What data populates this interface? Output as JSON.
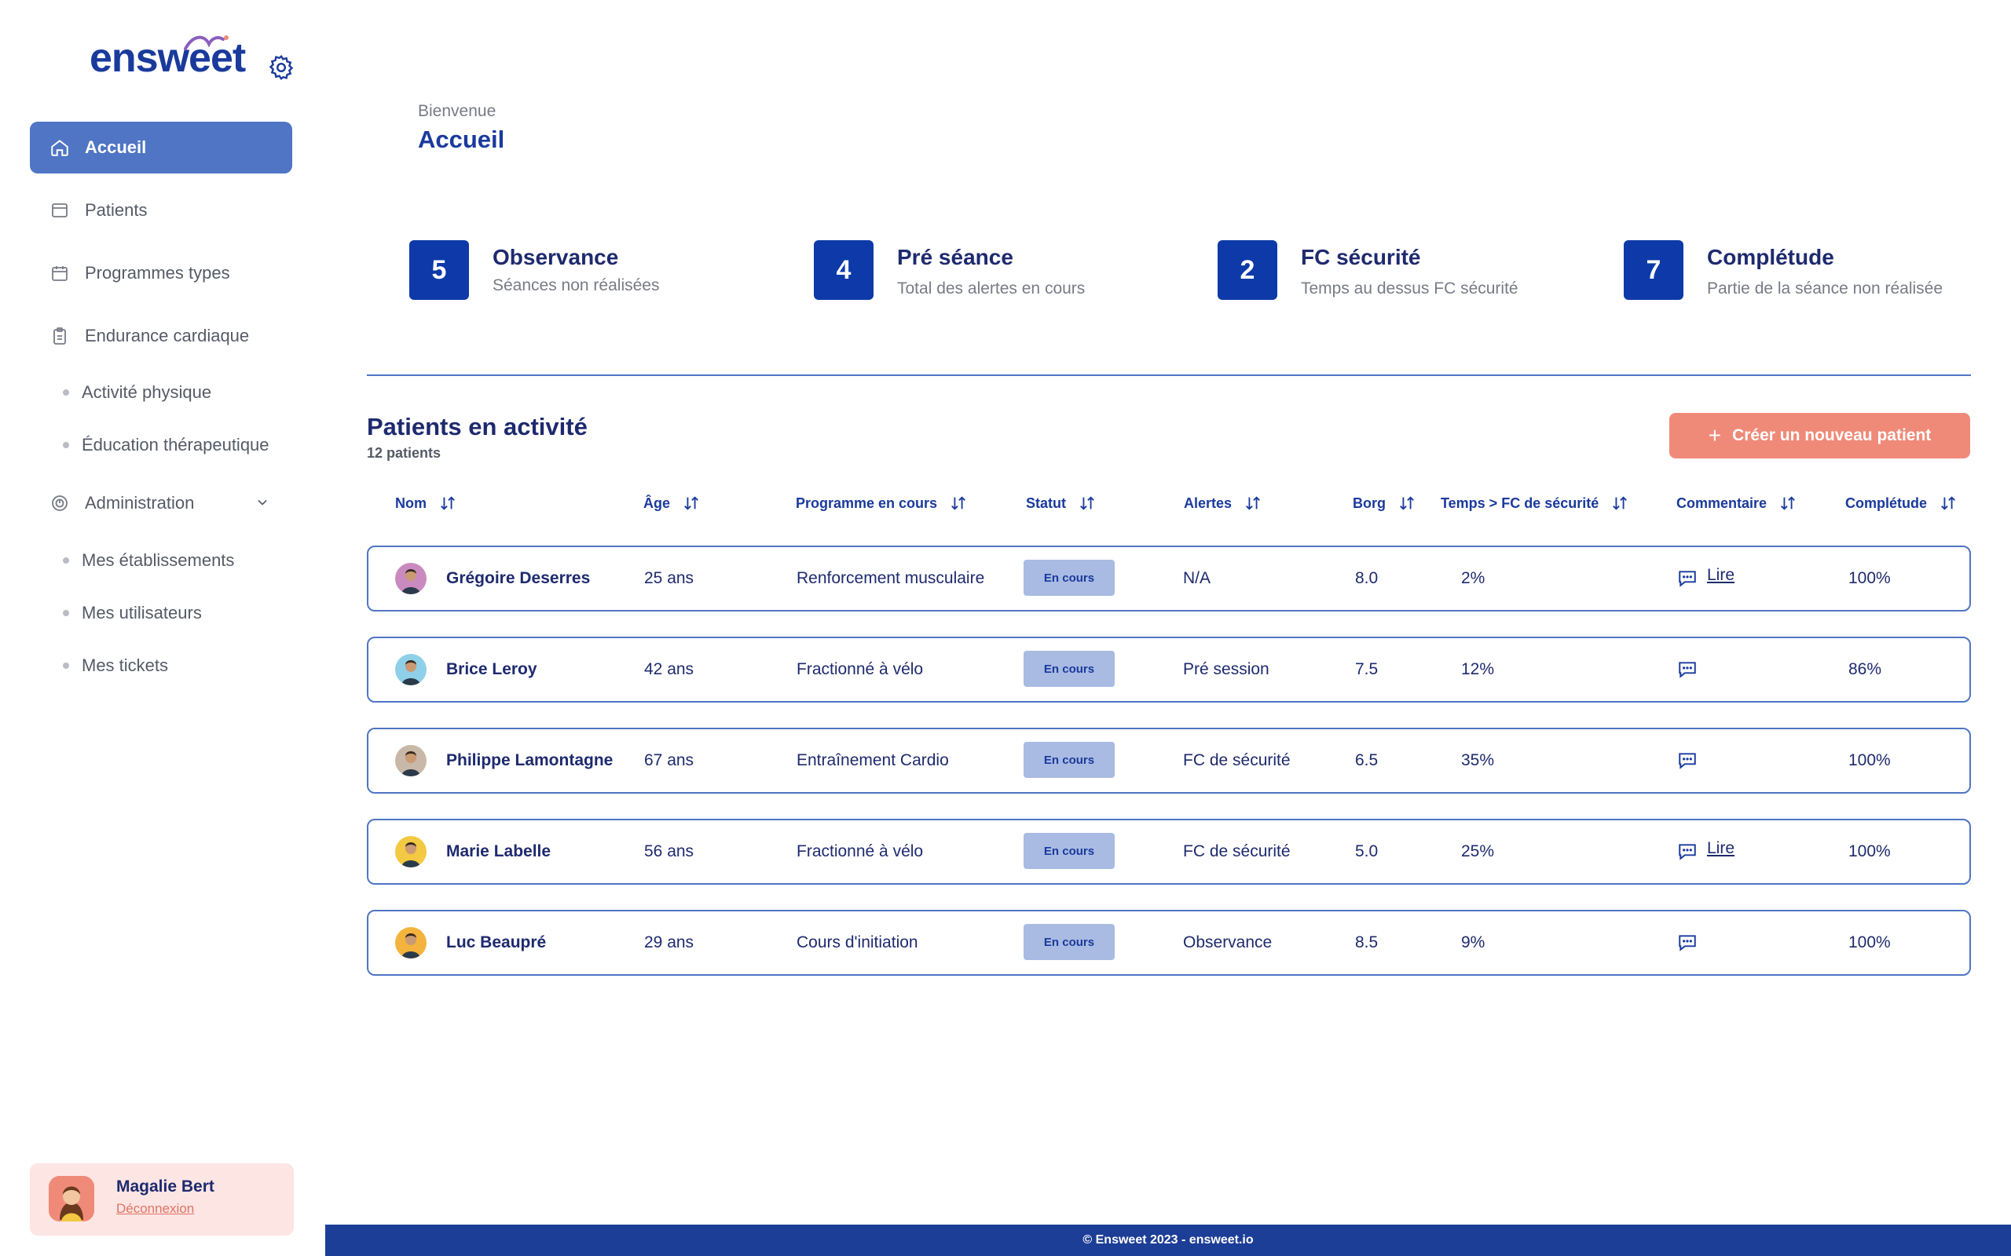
{
  "app": {
    "logo_text": "ensweet"
  },
  "sidebar": {
    "items": [
      {
        "label": "Accueil"
      },
      {
        "label": "Patients"
      },
      {
        "label": "Programmes types"
      },
      {
        "label": "Endurance cardiaque"
      },
      {
        "label": "Activité physique"
      },
      {
        "label": "Éducation thérapeutique"
      },
      {
        "label": "Administration"
      },
      {
        "label": "Mes établissements"
      },
      {
        "label": "Mes utilisateurs"
      },
      {
        "label": "Mes tickets"
      }
    ],
    "active": "Accueil"
  },
  "user": {
    "name": "Magalie Bert",
    "logout": "Déconnexion"
  },
  "header": {
    "welcome": "Bienvenue",
    "title": "Accueil"
  },
  "stats": [
    {
      "value": "5",
      "title": "Observance",
      "subtitle": "Séances non réalisées"
    },
    {
      "value": "4",
      "title": "Pré séance",
      "subtitle": "Total des alertes en cours"
    },
    {
      "value": "2",
      "title": "FC sécurité",
      "subtitle": "Temps au dessus FC sécurité"
    },
    {
      "value": "7",
      "title": "Complétude",
      "subtitle": "Partie de la séance non réalisée"
    }
  ],
  "patients": {
    "title": "Patients en activité",
    "count": "12 patients",
    "create_label": "Créer un nouveau patient",
    "columns": [
      "Nom",
      "Âge",
      "Programme en cours",
      "Statut",
      "Alertes",
      "Borg",
      "Temps > FC de sécurité",
      "Commentaire",
      "Complétude"
    ],
    "rows": [
      {
        "name": "Grégoire Deserres",
        "age": "25 ans",
        "program": "Renforcement musculaire",
        "status": "En cours",
        "alert": "N/A",
        "borg": "8.0",
        "time": "2%",
        "comment": "Lire",
        "completion": "100%",
        "avatar_color": "#c98bbf"
      },
      {
        "name": "Brice Leroy",
        "age": "42 ans",
        "program": "Fractionné à vélo",
        "status": "En cours",
        "alert": "Pré session",
        "borg": "7.5",
        "time": "12%",
        "comment": "",
        "completion": "86%",
        "avatar_color": "#8fd0e8"
      },
      {
        "name": "Philippe Lamontagne",
        "age": "67 ans",
        "program": "Entraînement Cardio",
        "status": "En cours",
        "alert": "FC de sécurité",
        "borg": "6.5",
        "time": "35%",
        "comment": "",
        "completion": "100%",
        "avatar_color": "#c9b8a8"
      },
      {
        "name": "Marie Labelle",
        "age": "56 ans",
        "program": "Fractionné à vélo",
        "status": "En cours",
        "alert": "FC de sécurité",
        "borg": "5.0",
        "time": "25%",
        "comment": "Lire",
        "completion": "100%",
        "avatar_color": "#f3c842"
      },
      {
        "name": "Luc Beaupré",
        "age": "29 ans",
        "program": "Cours d'initiation",
        "status": "En cours",
        "alert": "Observance",
        "borg": "8.5",
        "time": "9%",
        "comment": "",
        "completion": "100%",
        "avatar_color": "#f3b33d"
      }
    ]
  },
  "footer": {
    "text": "© Ensweet 2023 - ensweet.io"
  },
  "colors": {
    "primary": "#0d3aa8",
    "accent": "#f08a78",
    "active_nav": "#4f75c4",
    "badge": "#a9bbe3"
  }
}
